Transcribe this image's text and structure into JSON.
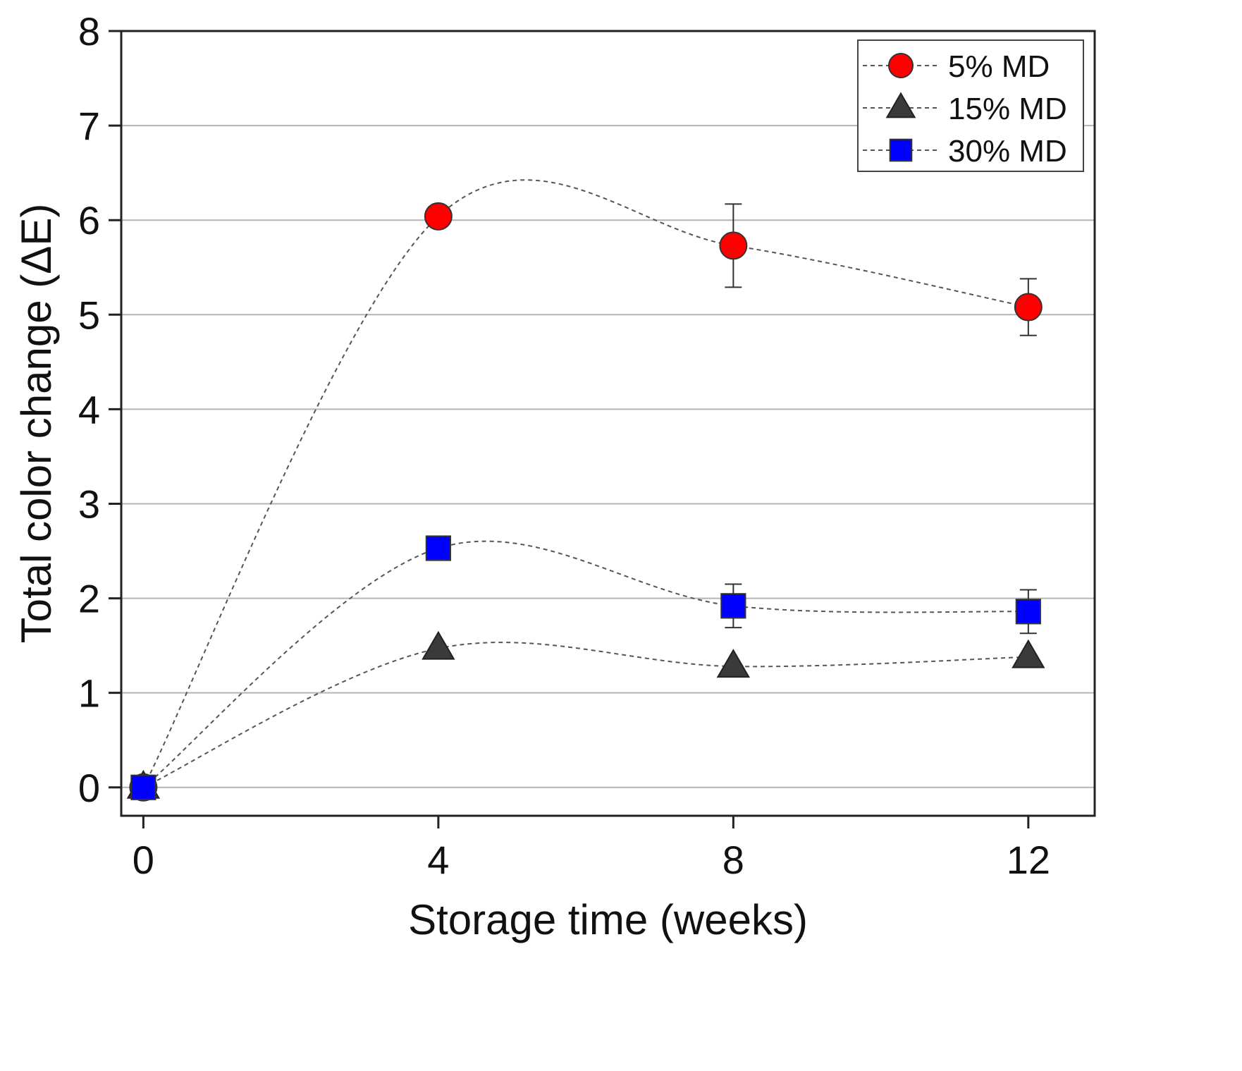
{
  "chart_data": {
    "type": "line",
    "title": "",
    "xlabel": "Storage time (weeks)",
    "ylabel": "Total color change (ΔE)",
    "xlim": [
      -0.3,
      12.9
    ],
    "ylim": [
      -0.3,
      8
    ],
    "x_ticks": [
      0,
      4,
      8,
      12
    ],
    "y_ticks": [
      0,
      1,
      2,
      3,
      4,
      5,
      6,
      7,
      8
    ],
    "grid": "horizontal",
    "legend_position": "top-right",
    "series": [
      {
        "name": "5% MD",
        "marker": "circle",
        "color": "#ff0000",
        "x": [
          0,
          4,
          8,
          12
        ],
        "y": [
          0,
          6.04,
          5.73,
          5.08
        ],
        "error": [
          0,
          0,
          0.44,
          0.3
        ]
      },
      {
        "name": "15% MD",
        "marker": "triangle",
        "color": "#3a3a3a",
        "x": [
          0,
          4,
          8,
          12
        ],
        "y": [
          0,
          1.47,
          1.28,
          1.38
        ],
        "error": [
          0,
          0,
          0,
          0
        ]
      },
      {
        "name": "30% MD",
        "marker": "square",
        "color": "#0000ff",
        "x": [
          0,
          4,
          8,
          12
        ],
        "y": [
          0,
          2.53,
          1.92,
          1.86
        ],
        "error": [
          0,
          0,
          0.23,
          0.23
        ]
      }
    ]
  }
}
